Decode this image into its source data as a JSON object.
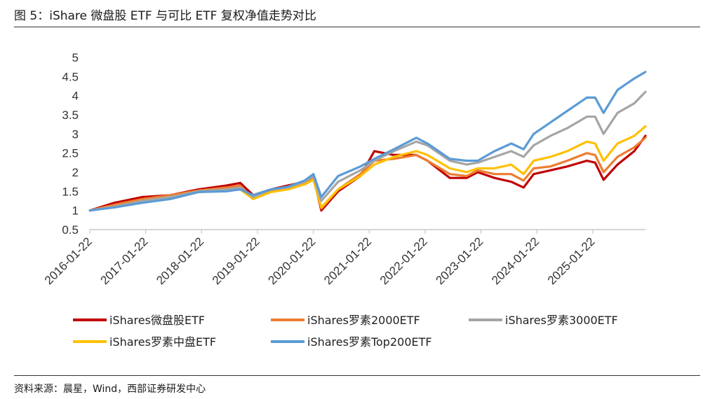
{
  "figure_title": "图 5：iShare 微盘股 ETF 与可比 ETF 复权净值走势对比",
  "source": "资料来源：晨星，Wind，西部证券研发中心",
  "colors": {
    "iShares微盘股ETF": "#C00000",
    "iShares罗素2000ETF": "#ED7D31",
    "iShares罗素3000ETF": "#A5A5A5",
    "iShares罗素中盘ETF": "#FFC000",
    "iShares罗素Top200ETF": "#5B9BD5"
  },
  "chart_data": {
    "type": "line",
    "title": "iShare 微盘股 ETF 与可比 ETF 复权净值走势对比",
    "xlabel": "",
    "ylabel": "",
    "ylim": [
      0.5,
      5
    ],
    "yticks": [
      "0.5",
      "1",
      "1.5",
      "2",
      "2.5",
      "3",
      "3.5",
      "4",
      "4.5",
      "5"
    ],
    "xlim": [
      2016.058,
      2026.0
    ],
    "xtick_positions": [
      2016.058,
      2017.058,
      2018.058,
      2019.058,
      2020.058,
      2021.058,
      2022.058,
      2023.058,
      2024.058,
      2025.058
    ],
    "xtick_labels": [
      "2016-01-22",
      "2017-01-22",
      "2018-01-22",
      "2019-01-22",
      "2020-01-22",
      "2021-01-22",
      "2022-01-22",
      "2023-01-22",
      "2024-01-22",
      "2025-01-22"
    ],
    "x": [
      2016.06,
      2016.5,
      2017.0,
      2017.5,
      2018.0,
      2018.5,
      2018.75,
      2018.98,
      2019.3,
      2019.6,
      2019.9,
      2020.06,
      2020.2,
      2020.5,
      2020.9,
      2021.15,
      2021.5,
      2021.9,
      2022.1,
      2022.5,
      2022.8,
      2023.0,
      2023.3,
      2023.6,
      2023.82,
      2024.0,
      2024.3,
      2024.6,
      2024.95,
      2025.1,
      2025.25,
      2025.5,
      2025.8,
      2026.0
    ],
    "series": [
      {
        "name": "iShares微盘股ETF",
        "values": [
          1.0,
          1.2,
          1.35,
          1.4,
          1.55,
          1.65,
          1.72,
          1.4,
          1.55,
          1.65,
          1.75,
          1.88,
          1.0,
          1.5,
          1.9,
          2.55,
          2.45,
          2.45,
          2.3,
          1.85,
          1.85,
          2.0,
          1.85,
          1.75,
          1.6,
          1.95,
          2.05,
          2.15,
          2.3,
          2.25,
          1.8,
          2.2,
          2.55,
          2.95
        ]
      },
      {
        "name": "iShares罗素2000ETF",
        "values": [
          1.0,
          1.15,
          1.3,
          1.4,
          1.52,
          1.6,
          1.65,
          1.3,
          1.5,
          1.6,
          1.72,
          1.85,
          1.05,
          1.55,
          1.95,
          2.3,
          2.35,
          2.45,
          2.3,
          1.95,
          1.9,
          2.05,
          1.95,
          1.95,
          1.78,
          2.1,
          2.15,
          2.3,
          2.5,
          2.45,
          2.0,
          2.4,
          2.65,
          2.9
        ]
      },
      {
        "name": "iShares罗素3000ETF",
        "values": [
          1.0,
          1.1,
          1.25,
          1.35,
          1.5,
          1.55,
          1.6,
          1.35,
          1.55,
          1.6,
          1.75,
          1.9,
          1.25,
          1.75,
          2.05,
          2.3,
          2.55,
          2.8,
          2.7,
          2.3,
          2.2,
          2.25,
          2.4,
          2.55,
          2.4,
          2.7,
          2.95,
          3.15,
          3.45,
          3.45,
          3.0,
          3.55,
          3.8,
          4.1
        ]
      },
      {
        "name": "iShares罗素中盘ETF",
        "values": [
          1.0,
          1.1,
          1.25,
          1.35,
          1.48,
          1.52,
          1.55,
          1.3,
          1.48,
          1.55,
          1.68,
          1.8,
          1.08,
          1.55,
          1.9,
          2.2,
          2.4,
          2.55,
          2.45,
          2.1,
          2.0,
          2.1,
          2.1,
          2.2,
          1.95,
          2.3,
          2.4,
          2.55,
          2.8,
          2.75,
          2.3,
          2.75,
          2.95,
          3.2
        ]
      },
      {
        "name": "iShares罗素Top200ETF",
        "values": [
          1.0,
          1.08,
          1.2,
          1.3,
          1.48,
          1.5,
          1.55,
          1.4,
          1.55,
          1.62,
          1.78,
          1.95,
          1.35,
          1.9,
          2.15,
          2.35,
          2.6,
          2.9,
          2.75,
          2.35,
          2.3,
          2.3,
          2.55,
          2.75,
          2.6,
          3.0,
          3.3,
          3.6,
          3.95,
          3.95,
          3.55,
          4.15,
          4.45,
          4.62
        ]
      }
    ],
    "legend": {
      "placement": "bottom",
      "entries": [
        "iShares微盘股ETF",
        "iShares罗素2000ETF",
        "iShares罗素3000ETF",
        "iShares罗素中盘ETF",
        "iShares罗素Top200ETF"
      ]
    }
  }
}
